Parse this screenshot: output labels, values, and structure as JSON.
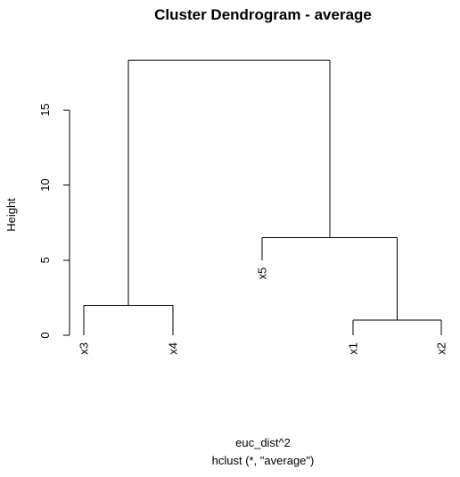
{
  "chart_data": {
    "type": "dendrogram",
    "title": "Cluster Dendrogram - average",
    "ylabel": "Height",
    "xlabel": "euc_dist^2",
    "sub": "hclust (*, \"average\")",
    "ylim": [
      0,
      18.3
    ],
    "yticks": [
      0,
      5,
      10,
      15
    ],
    "leaves": [
      {
        "label": "x3",
        "height": 0
      },
      {
        "label": "x4",
        "height": 0
      },
      {
        "label": "x5",
        "height": 5
      },
      {
        "label": "x1",
        "height": 0
      },
      {
        "label": "x2",
        "height": 0
      }
    ],
    "merges": [
      {
        "left": "x3",
        "right": "x4",
        "height": 2
      },
      {
        "left": "x1",
        "right": "x2",
        "height": 1
      },
      {
        "left": "x5",
        "right": "x1-x2",
        "height": 6.5
      },
      {
        "left": "x3-x4",
        "right": "x5-x1-x2",
        "height": 18.3
      }
    ]
  }
}
